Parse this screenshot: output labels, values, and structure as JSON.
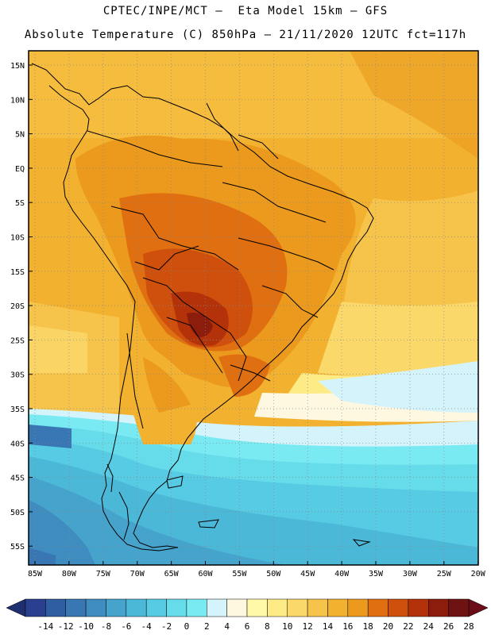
{
  "title_line1": "CPTEC/INPE/MCT –  Eta Model 15km – GFS",
  "title_line2": "Absolute Temperature (C) 850hPa – 21/11/2020 12UTC fct=117h",
  "lat_labels": [
    "15N",
    "10N",
    "5N",
    "EQ",
    "5S",
    "10S",
    "15S",
    "20S",
    "25S",
    "30S",
    "35S",
    "40S",
    "45S",
    "50S",
    "55S"
  ],
  "lon_labels": [
    "85W",
    "80W",
    "75W",
    "70W",
    "65W",
    "60W",
    "55W",
    "50W",
    "45W",
    "40W",
    "35W",
    "30W",
    "25W",
    "20W"
  ],
  "colorbar": {
    "labels": [
      "-14",
      "-12",
      "-10",
      "-8",
      "-6",
      "-4",
      "-2",
      "0",
      "2",
      "4",
      "6",
      "8",
      "10",
      "12",
      "14",
      "16",
      "18",
      "20",
      "22",
      "24",
      "26",
      "28"
    ],
    "colors": [
      "#2a3f8f",
      "#2f5ea3",
      "#3877b3",
      "#3f8dc0",
      "#45a3cc",
      "#4cb8d8",
      "#57cbe3",
      "#66dceb",
      "#7aeaf2",
      "#d4f3fb",
      "#fff8e1",
      "#fff9a8",
      "#fdeb85",
      "#fbd86a",
      "#f6c44b",
      "#f3b130",
      "#eb9a1d",
      "#df6f10",
      "#cf4f0c",
      "#b3320a",
      "#8c1d0c",
      "#6e1312"
    ],
    "low_arrow_color": "#1e2e6e",
    "high_arrow_color": "#6b0d18"
  }
}
